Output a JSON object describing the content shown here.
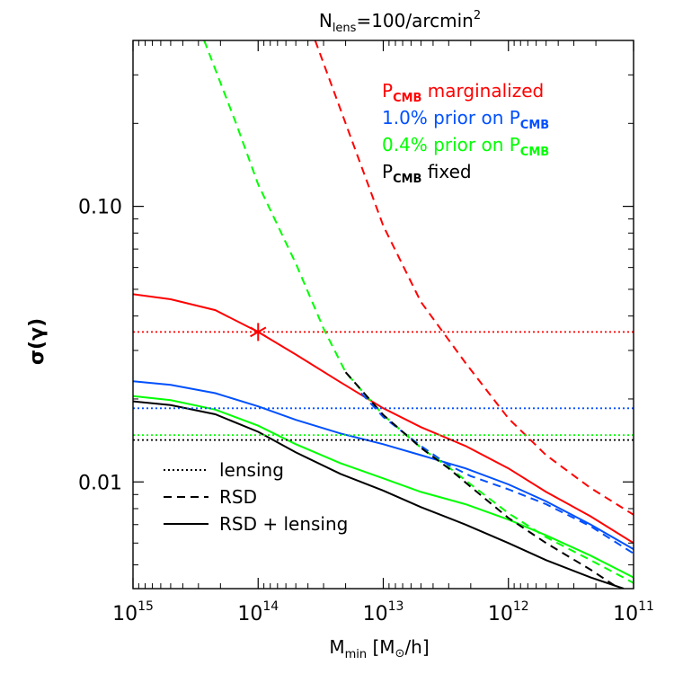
{
  "chart_data": {
    "type": "line",
    "title": "N",
    "title_sub": "lens",
    "title_rest": "=100/arcmin",
    "title_sup": "2",
    "xlabel": "M",
    "xlabel_sub": "min",
    "xlabel_rest": " [M",
    "xlabel_sun": "⊙",
    "xlabel_end": "/h]",
    "ylabel": "σ(γ)",
    "x_scale": "log",
    "y_scale": "log",
    "x_reversed": true,
    "xlim": [
      1000000000000000.0,
      100000000000.0
    ],
    "ylim": [
      0.0041,
      0.4
    ],
    "x_ticks": [
      {
        "value": 1000000000000000.0,
        "base": "10",
        "exp": "15"
      },
      {
        "value": 100000000000000.0,
        "base": "10",
        "exp": "14"
      },
      {
        "value": 10000000000000.0,
        "base": "10",
        "exp": "13"
      },
      {
        "value": 1000000000000.0,
        "base": "10",
        "exp": "12"
      },
      {
        "value": 100000000000.0,
        "base": "10",
        "exp": "11"
      }
    ],
    "y_ticks": [
      {
        "value": 0.01,
        "label": "0.01"
      },
      {
        "value": 0.1,
        "label": "0.10"
      }
    ],
    "legend_position": "top-right",
    "legend": [
      {
        "pre": "P",
        "sub": "CMB",
        "post": " marginalized",
        "pre2": "",
        "sub2": "",
        "color": "#ff0000"
      },
      {
        "pre": "1.0% prior on P",
        "sub": "CMB",
        "post": "",
        "color": "#0050ff"
      },
      {
        "pre": "0.4% prior on P",
        "sub": "CMB",
        "post": "",
        "color": "#00ff00"
      },
      {
        "pre": "P",
        "sub": "CMB",
        "post": " fixed",
        "color": "#000000"
      }
    ],
    "style_legend_position": "bottom-left",
    "style_legend": [
      {
        "label": "lensing",
        "dash": "dotted"
      },
      {
        "label": "RSD",
        "dash": "dashed"
      },
      {
        "label": "RSD + lensing",
        "dash": "solid"
      }
    ],
    "series": [
      {
        "color": "#ff0000",
        "style": "solid",
        "x": [
          1000000000000000.0,
          500000000000000.0,
          220000000000000.0,
          100000000000000.0,
          50000000000000.0,
          22000000000000.0,
          10000000000000.0,
          5000000000000.0,
          2200000000000.0,
          1000000000000.0,
          500000000000.0,
          220000000000.0,
          100000000000.0
        ],
        "y": [
          0.048,
          0.046,
          0.042,
          0.035,
          0.029,
          0.023,
          0.0185,
          0.0158,
          0.0135,
          0.0112,
          0.0092,
          0.0075,
          0.006
        ]
      },
      {
        "color": "#ff0000",
        "style": "dashed",
        "x": [
          35000000000000.0,
          20000000000000.0,
          10000000000000.0,
          5000000000000.0,
          2200000000000.0,
          1000000000000.0,
          500000000000.0,
          220000000000.0,
          100000000000.0
        ],
        "y": [
          0.4,
          0.2,
          0.085,
          0.045,
          0.027,
          0.017,
          0.0125,
          0.0095,
          0.0076
        ]
      },
      {
        "color": "#0050ff",
        "style": "solid",
        "x": [
          1000000000000000.0,
          500000000000000.0,
          220000000000000.0,
          100000000000000.0,
          50000000000000.0,
          22000000000000.0,
          10000000000000.0,
          5000000000000.0,
          2200000000000.0,
          1000000000000.0,
          500000000000.0,
          220000000000.0,
          100000000000.0
        ],
        "y": [
          0.0232,
          0.0225,
          0.021,
          0.0188,
          0.0168,
          0.015,
          0.0137,
          0.0125,
          0.0112,
          0.0098,
          0.0085,
          0.007,
          0.0057
        ]
      },
      {
        "color": "#0050ff",
        "style": "dashed",
        "x": [
          15000000000000.0,
          10000000000000.0,
          5000000000000.0,
          3000000000000.0,
          2000000000000.0,
          1000000000000.0,
          500000000000.0,
          220000000000.0,
          100000000000.0
        ],
        "y": [
          0.021,
          0.0172,
          0.0135,
          0.0115,
          0.0105,
          0.0094,
          0.0083,
          0.0069,
          0.0055
        ]
      },
      {
        "color": "#00ff00",
        "style": "solid",
        "x": [
          1000000000000000.0,
          500000000000000.0,
          220000000000000.0,
          100000000000000.0,
          50000000000000.0,
          22000000000000.0,
          10000000000000.0,
          5000000000000.0,
          2200000000000.0,
          1000000000000.0,
          500000000000.0,
          220000000000.0,
          100000000000.0
        ],
        "y": [
          0.0205,
          0.0198,
          0.0183,
          0.016,
          0.0137,
          0.0117,
          0.0103,
          0.0092,
          0.0083,
          0.0073,
          0.0064,
          0.0054,
          0.0045
        ]
      },
      {
        "color": "#00ff00",
        "style": "dashed",
        "x": [
          270000000000000.0,
          150000000000000.0,
          100000000000000.0,
          50000000000000.0,
          30000000000000.0,
          20000000000000.0,
          10000000000000.0,
          5000000000000.0,
          3000000000000.0,
          2000000000000.0,
          1000000000000.0,
          500000000000.0,
          220000000000.0,
          100000000000.0
        ],
        "y": [
          0.4,
          0.2,
          0.12,
          0.062,
          0.036,
          0.025,
          0.0175,
          0.0133,
          0.0113,
          0.0098,
          0.0077,
          0.0063,
          0.0052,
          0.0043
        ]
      },
      {
        "color": "#000000",
        "style": "solid",
        "x": [
          1000000000000000.0,
          500000000000000.0,
          220000000000000.0,
          100000000000000.0,
          50000000000000.0,
          22000000000000.0,
          10000000000000.0,
          5000000000000.0,
          2200000000000.0,
          1000000000000.0,
          500000000000.0,
          220000000000.0,
          120000000000.0
        ],
        "y": [
          0.0196,
          0.019,
          0.0176,
          0.0152,
          0.0128,
          0.0107,
          0.0093,
          0.0081,
          0.007,
          0.006,
          0.0052,
          0.0045,
          0.0041
        ]
      },
      {
        "color": "#000000",
        "style": "dashed",
        "x": [
          20000000000000.0,
          10000000000000.0,
          5000000000000.0,
          3000000000000.0,
          2000000000000.0,
          1000000000000.0,
          500000000000.0,
          220000000000.0,
          130000000000.0
        ],
        "y": [
          0.025,
          0.0175,
          0.0133,
          0.0112,
          0.0096,
          0.0074,
          0.006,
          0.0048,
          0.0041
        ]
      },
      {
        "color": "#ff0000",
        "style": "dotted",
        "x": [
          1000000000000000.0,
          100000000000.0
        ],
        "y": [
          0.035,
          0.035
        ]
      },
      {
        "color": "#0050ff",
        "style": "dotted",
        "x": [
          1000000000000000.0,
          100000000000.0
        ],
        "y": [
          0.0185,
          0.0185
        ]
      },
      {
        "color": "#00ff00",
        "style": "dotted",
        "x": [
          1000000000000000.0,
          100000000000.0
        ],
        "y": [
          0.0148,
          0.0148
        ]
      },
      {
        "color": "#000000",
        "style": "dotted",
        "x": [
          1000000000000000.0,
          100000000000.0
        ],
        "y": [
          0.0142,
          0.0142
        ]
      }
    ],
    "markers": [
      {
        "x": 100000000000000.0,
        "y": 0.035,
        "color": "#ff0000",
        "shape": "asterisk"
      }
    ]
  }
}
